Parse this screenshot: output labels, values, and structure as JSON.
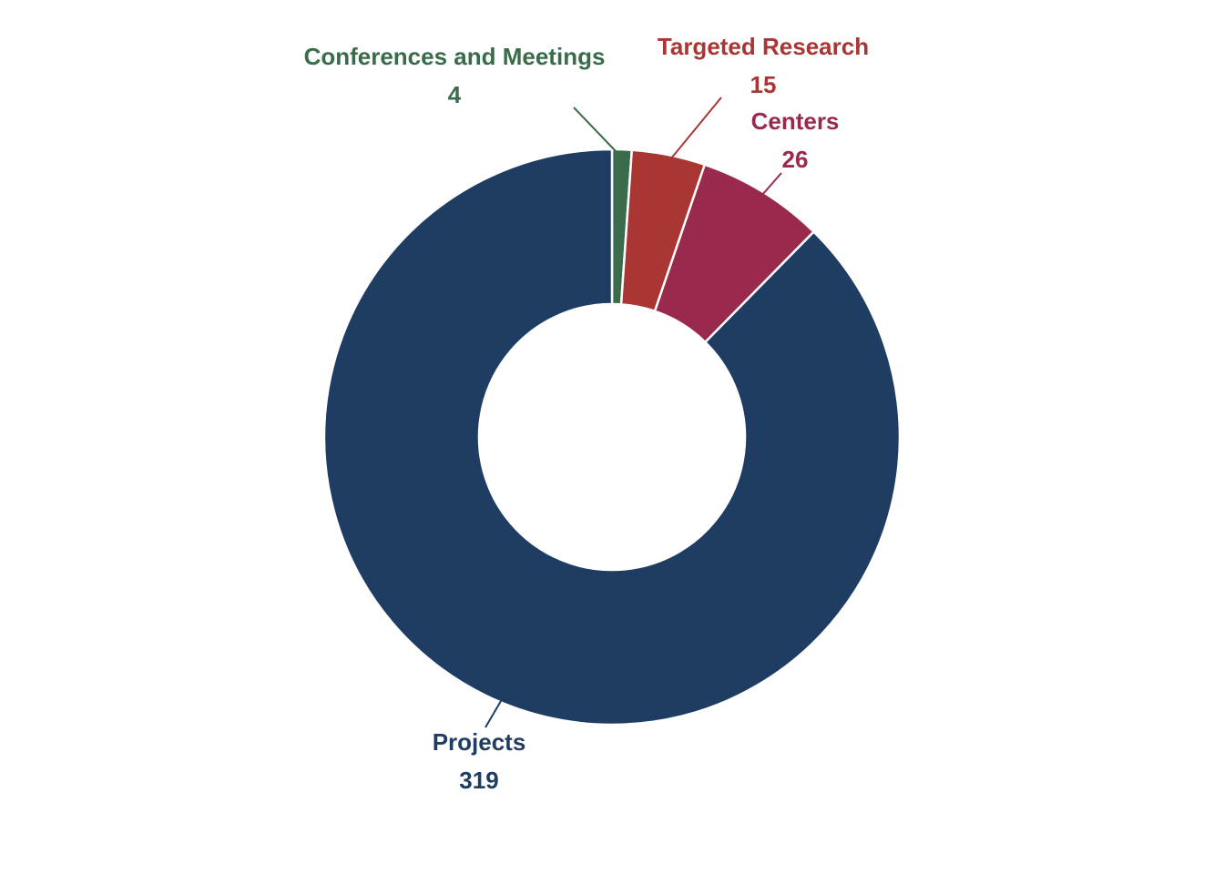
{
  "chart_data": {
    "type": "pie",
    "variant": "donut",
    "title": "",
    "categories": [
      "Conferences and Meetings",
      "Targeted Research",
      "Centers",
      "Projects"
    ],
    "values": [
      4,
      15,
      26,
      319
    ],
    "colors": [
      "#3a6b4a",
      "#a93633",
      "#9a2a4c",
      "#1f3d63"
    ],
    "slices": [
      {
        "label": "Conferences and Meetings",
        "value": "4",
        "color": "#3a6b4a"
      },
      {
        "label": "Targeted Research",
        "value": "15",
        "color": "#a93633"
      },
      {
        "label": "Centers",
        "value": "26",
        "color": "#9a2a4c"
      },
      {
        "label": "Projects",
        "value": "319",
        "color": "#1f3d63"
      }
    ],
    "start_angle_deg": 0,
    "direction": "clockwise",
    "legend": "none"
  }
}
